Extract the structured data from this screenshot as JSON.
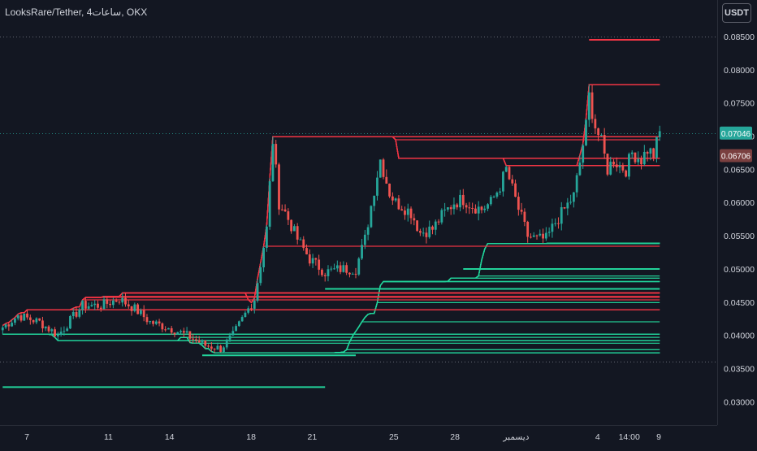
{
  "header": {
    "title": "LooksRare/Tether, 4ساعات, OKX"
  },
  "toolbar": {
    "currency_label": "USDT"
  },
  "colors": {
    "background": "#131722",
    "up_candle": "#26a69a",
    "down_candle": "#ef5350",
    "upper_channel": "#f23645",
    "lower_channel": "#22d39a",
    "grid_line": "#787b86",
    "current_price_badge": "#26a69a",
    "reference_price_badge": "#7a3f3f"
  },
  "chart_data": {
    "type": "candlestick",
    "title": "",
    "y_axis": {
      "ticks": [
        "0.08500",
        "0.08000",
        "0.07500",
        "0.07000",
        "0.06500",
        "0.06000",
        "0.05500",
        "0.05000",
        "0.04500",
        "0.04000",
        "0.03500",
        "0.03000"
      ],
      "range": [
        0.0265,
        0.0905
      ]
    },
    "x_axis": {
      "ticks": [
        "7",
        "11",
        "14",
        "18",
        "21",
        "25",
        "28",
        "ديسمبر",
        "4",
        "14:00",
        "9"
      ],
      "tick_positions_day": [
        7,
        11,
        14,
        18,
        21,
        25,
        28,
        31,
        35,
        36.55,
        38
      ]
    },
    "price_labels": {
      "current": "0.07046",
      "reference": "0.06706"
    },
    "candle_series": {
      "name": "",
      "anchors": [
        [
          0,
          0.0412
        ],
        [
          5,
          0.043
        ],
        [
          12,
          0.042
        ],
        [
          18,
          0.04
        ],
        [
          26,
          0.0445
        ],
        [
          32,
          0.0445
        ],
        [
          38,
          0.0455
        ],
        [
          43,
          0.044
        ],
        [
          48,
          0.042
        ],
        [
          55,
          0.041
        ],
        [
          60,
          0.04
        ],
        [
          66,
          0.0385
        ],
        [
          71,
          0.038
        ],
        [
          75,
          0.04
        ],
        [
          80,
          0.044
        ],
        [
          82,
          0.0455
        ],
        [
          86,
          0.056
        ],
        [
          88,
          0.0694
        ],
        [
          90,
          0.06
        ],
        [
          92,
          0.0585
        ],
        [
          96,
          0.0545
        ],
        [
          100,
          0.0515
        ],
        [
          105,
          0.0495
        ],
        [
          110,
          0.05
        ],
        [
          115,
          0.05
        ],
        [
          118,
          0.0545
        ],
        [
          121,
          0.062
        ],
        [
          123,
          0.0665
        ],
        [
          126,
          0.0615
        ],
        [
          128,
          0.06
        ],
        [
          130,
          0.0595
        ],
        [
          133,
          0.0585
        ],
        [
          136,
          0.0555
        ],
        [
          140,
          0.056
        ],
        [
          143,
          0.058
        ],
        [
          147,
          0.06
        ],
        [
          150,
          0.0605
        ],
        [
          153,
          0.0595
        ],
        [
          156,
          0.059
        ],
        [
          159,
          0.06
        ],
        [
          162,
          0.0625
        ],
        [
          164,
          0.065
        ],
        [
          166,
          0.062
        ],
        [
          168,
          0.059
        ],
        [
          171,
          0.055
        ],
        [
          174,
          0.0545
        ],
        [
          177,
          0.0545
        ],
        [
          180,
          0.057
        ],
        [
          183,
          0.059
        ],
        [
          186,
          0.061
        ],
        [
          188,
          0.066
        ],
        [
          190,
          0.0715
        ],
        [
          191,
          0.076
        ],
        [
          193,
          0.0715
        ],
        [
          195,
          0.069
        ],
        [
          197,
          0.065
        ],
        [
          199,
          0.0665
        ],
        [
          201,
          0.0655
        ],
        [
          203,
          0.065
        ],
        [
          205,
          0.0675
        ],
        [
          208,
          0.0665
        ],
        [
          210,
          0.068
        ],
        [
          212,
          0.0672
        ],
        [
          214,
          0.0705
        ]
      ]
    },
    "upper_channels": {
      "name": "",
      "count": 40,
      "period_candles": 40,
      "main_level": "0.0845"
    },
    "lower_channels": {
      "name": "",
      "count": 40,
      "period_candles": 40,
      "support_levels": [
        "0.0322",
        "0.0370",
        "0.0470",
        "0.0500"
      ]
    },
    "reference_lines": [
      "0.08500",
      "0.07046",
      "0.03600"
    ],
    "grid": false
  }
}
